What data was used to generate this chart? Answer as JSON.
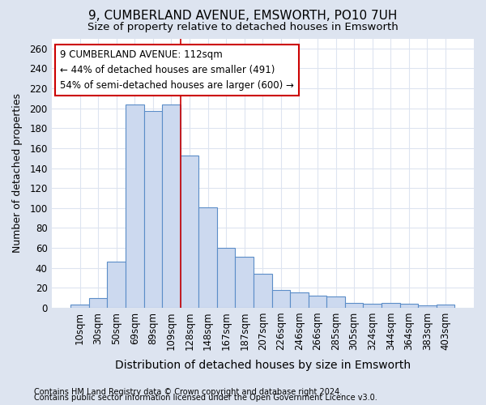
{
  "title": "9, CUMBERLAND AVENUE, EMSWORTH, PO10 7UH",
  "subtitle": "Size of property relative to detached houses in Emsworth",
  "xlabel": "Distribution of detached houses by size in Emsworth",
  "ylabel": "Number of detached properties",
  "categories": [
    "10sqm",
    "30sqm",
    "50sqm",
    "69sqm",
    "89sqm",
    "109sqm",
    "128sqm",
    "148sqm",
    "167sqm",
    "187sqm",
    "207sqm",
    "226sqm",
    "246sqm",
    "266sqm",
    "285sqm",
    "305sqm",
    "324sqm",
    "344sqm",
    "364sqm",
    "383sqm",
    "403sqm"
  ],
  "values": [
    3,
    10,
    46,
    204,
    197,
    204,
    153,
    101,
    60,
    51,
    34,
    18,
    15,
    12,
    11,
    5,
    4,
    5,
    4,
    2,
    3
  ],
  "bar_color": "#ccd9ef",
  "bar_edge_color": "#5b8dc8",
  "vline_x_index": 5.5,
  "vline_color": "#cc0000",
  "annotation_line1": "9 CUMBERLAND AVENUE: 112sqm",
  "annotation_line2": "← 44% of detached houses are smaller (491)",
  "annotation_line3": "54% of semi-detached houses are larger (600) →",
  "annotation_box_color": "white",
  "annotation_box_edge": "#cc0000",
  "footer1": "Contains HM Land Registry data © Crown copyright and database right 2024.",
  "footer2": "Contains public sector information licensed under the Open Government Licence v3.0.",
  "ylim": [
    0,
    270
  ],
  "yticks": [
    0,
    20,
    40,
    60,
    80,
    100,
    120,
    140,
    160,
    180,
    200,
    220,
    240,
    260
  ],
  "fig_bg_color": "#dde4f0",
  "plot_bg_color": "#ffffff",
  "grid_color": "#dde4f0",
  "title_fontsize": 11,
  "subtitle_fontsize": 9.5,
  "xlabel_fontsize": 10,
  "ylabel_fontsize": 9,
  "tick_fontsize": 8.5,
  "annotation_fontsize": 8.5,
  "footer_fontsize": 7
}
